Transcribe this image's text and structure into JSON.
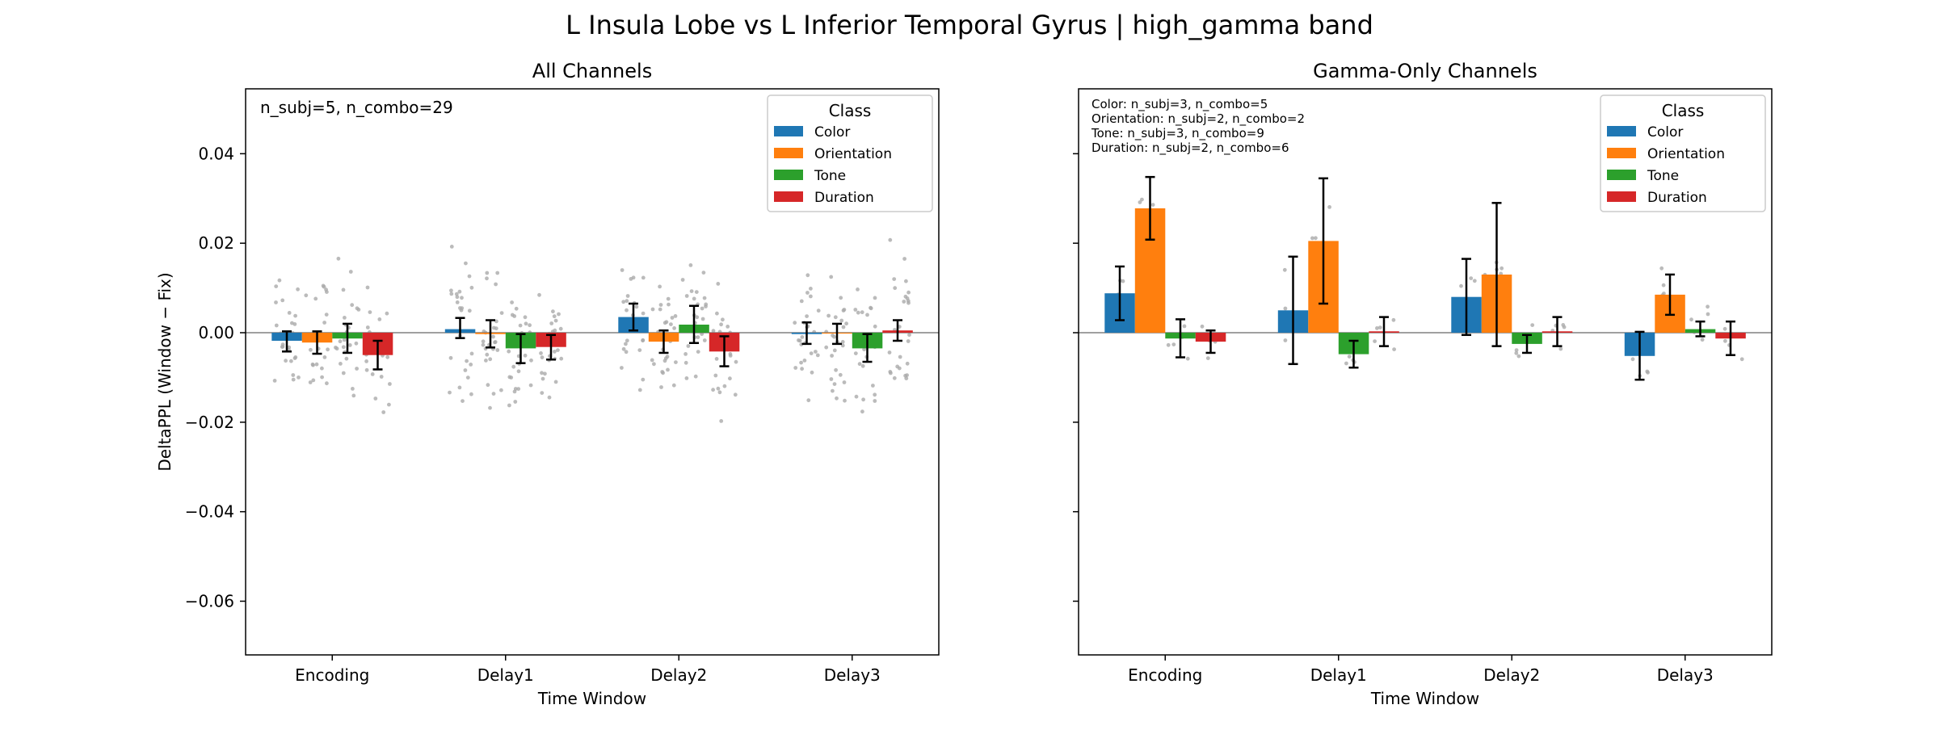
{
  "figure": {
    "suptitle": "L Insula Lobe vs L Inferior Temporal Gyrus  |  high_gamma band"
  },
  "colors": {
    "Color": "#1f77b4",
    "Orientation": "#ff7f0e",
    "Tone": "#2ca02c",
    "Duration": "#d62728",
    "points": "#aaaaaa",
    "zero_line": "#808080"
  },
  "chart_data": [
    {
      "type": "bar",
      "title": "All Channels",
      "xlabel": "Time Window",
      "ylabel": "DeltaPPL (Window − Fix)",
      "ylim": [
        -0.072,
        0.0545
      ],
      "yticks": [
        0.04,
        0.02,
        0.0,
        -0.02,
        -0.04,
        -0.06
      ],
      "ytick_labels": [
        "0.04",
        "0.02",
        "0.00",
        "−0.02",
        "−0.04",
        "−0.06"
      ],
      "show_ytick_labels": true,
      "categories": [
        "Encoding",
        "Delay1",
        "Delay2",
        "Delay3"
      ],
      "legend": {
        "title": "Class",
        "position": "top-right"
      },
      "annotation": [
        "n_subj=5, n_combo=29"
      ],
      "series": [
        {
          "name": "Color",
          "values": [
            -0.0018,
            0.0008,
            0.0035,
            -0.0003
          ],
          "err_low": [
            -0.0042,
            -0.0012,
            0.0005,
            -0.0025
          ],
          "err_high": [
            0.0003,
            0.0033,
            0.0065,
            0.0023
          ]
        },
        {
          "name": "Orientation",
          "values": [
            -0.0022,
            -0.0003,
            -0.002,
            -0.0002
          ],
          "err_low": [
            -0.0047,
            -0.0033,
            -0.0045,
            -0.0025
          ],
          "err_high": [
            0.0003,
            0.0028,
            0.0005,
            0.002
          ]
        },
        {
          "name": "Tone",
          "values": [
            -0.0013,
            -0.0035,
            0.0018,
            -0.0035
          ],
          "err_low": [
            -0.0045,
            -0.0068,
            -0.0023,
            -0.0065
          ],
          "err_high": [
            0.002,
            -0.0003,
            0.006,
            -0.0003
          ]
        },
        {
          "name": "Duration",
          "values": [
            -0.005,
            -0.0032,
            -0.0042,
            0.0005
          ],
          "err_low": [
            -0.0082,
            -0.006,
            -0.0075,
            -0.0018
          ],
          "err_high": [
            -0.0018,
            -0.0005,
            -0.0008,
            0.0028
          ]
        }
      ]
    },
    {
      "type": "bar",
      "title": "Gamma-Only Channels",
      "xlabel": "Time Window",
      "ylabel": "",
      "ylim": [
        -0.072,
        0.0545
      ],
      "yticks": [
        0.04,
        0.02,
        0.0,
        -0.02,
        -0.04,
        -0.06
      ],
      "ytick_labels": [
        "",
        "",
        "",
        "",
        "",
        ""
      ],
      "show_ytick_labels": false,
      "categories": [
        "Encoding",
        "Delay1",
        "Delay2",
        "Delay3"
      ],
      "legend": {
        "title": "Class",
        "position": "top-right"
      },
      "annotation": [
        "Color: n_subj=3, n_combo=5",
        "Orientation: n_subj=2, n_combo=2",
        "Tone: n_subj=3, n_combo=9",
        "Duration: n_subj=2, n_combo=6"
      ],
      "series": [
        {
          "name": "Color",
          "values": [
            0.0088,
            0.005,
            0.008,
            -0.0052
          ],
          "err_low": [
            0.0028,
            -0.007,
            -0.0005,
            -0.0105
          ],
          "err_high": [
            0.0148,
            0.017,
            0.0165,
            0.0002
          ]
        },
        {
          "name": "Orientation",
          "values": [
            0.0278,
            0.0205,
            0.013,
            0.0085
          ],
          "err_low": [
            0.0208,
            0.0065,
            -0.003,
            0.004
          ],
          "err_high": [
            0.0348,
            0.0345,
            0.029,
            0.013
          ]
        },
        {
          "name": "Tone",
          "values": [
            -0.0013,
            -0.0048,
            -0.0025,
            0.0008
          ],
          "err_low": [
            -0.0055,
            -0.0078,
            -0.0045,
            -0.0008
          ],
          "err_high": [
            0.003,
            -0.0018,
            -0.0005,
            0.0025
          ]
        },
        {
          "name": "Duration",
          "values": [
            -0.002,
            0.0003,
            0.0003,
            -0.0013
          ],
          "err_low": [
            -0.0045,
            -0.003,
            -0.003,
            -0.005
          ],
          "err_high": [
            0.0005,
            0.0035,
            0.0035,
            0.0025
          ]
        }
      ]
    }
  ]
}
